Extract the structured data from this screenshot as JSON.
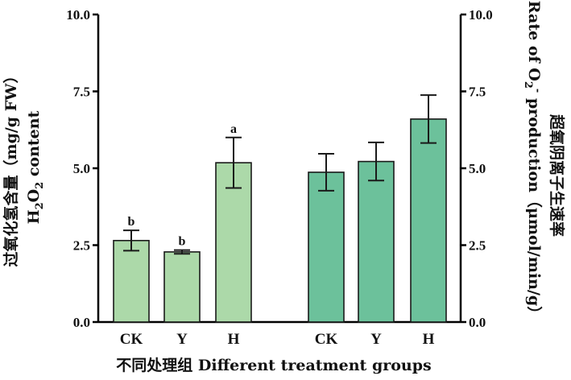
{
  "chart_data": {
    "type": "bar",
    "xlabel": "不同处理组  Different treatment groups",
    "left_axis": {
      "label_line1": "过氧化氢含量（mg/g  FW）",
      "label_line2_main": "H",
      "label_line2_sub": "2",
      "label_line2_mid": "O",
      "label_line2_sub2": "2",
      "label_line2_rest": " content",
      "ylim": [
        0,
        10
      ],
      "ticks": [
        "0.0",
        "2.5",
        "5.0",
        "7.5",
        "10.0"
      ]
    },
    "right_axis": {
      "label_line1_a": "Rate of O",
      "label_line1_sub": "2",
      "label_line1_sup": "-",
      "label_line1_b": " production（μmol/min/g）",
      "label_line2": "超氧阴离子生速率",
      "ylim": [
        0,
        10
      ],
      "ticks": [
        "0.0",
        "2.5",
        "5.0",
        "7.5",
        "10.0"
      ]
    },
    "series": [
      {
        "name": "",
        "axis": "left",
        "color": "#acd9a9",
        "categories": [
          "CK",
          "Y",
          "H"
        ],
        "values": [
          2.65,
          2.28,
          5.18
        ],
        "errors": [
          0.33,
          0.06,
          0.82
        ],
        "labels": [
          "b",
          "b",
          "a"
        ]
      },
      {
        "name": "",
        "axis": "right",
        "color": "#6cc19b",
        "categories": [
          "CK",
          "Y",
          "H"
        ],
        "values": [
          4.87,
          5.22,
          6.6
        ],
        "errors": [
          0.6,
          0.62,
          0.78
        ],
        "labels": [
          "",
          "",
          ""
        ]
      }
    ]
  }
}
